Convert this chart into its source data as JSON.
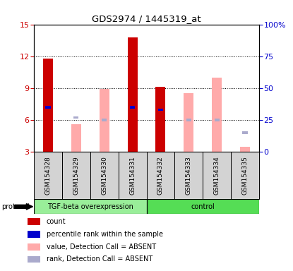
{
  "title": "GDS2974 / 1445319_at",
  "samples": [
    "GSM154328",
    "GSM154329",
    "GSM154330",
    "GSM154331",
    "GSM154332",
    "GSM154333",
    "GSM154334",
    "GSM154335"
  ],
  "left_ylim": [
    3,
    15
  ],
  "left_yticks": [
    3,
    6,
    9,
    12,
    15
  ],
  "right_ylim": [
    0,
    100
  ],
  "right_yticks": [
    0,
    25,
    50,
    75,
    100
  ],
  "right_yticklabels": [
    "0",
    "25",
    "50",
    "75",
    "100%"
  ],
  "left_axis_color": "#cc0000",
  "right_axis_color": "#0000cc",
  "count_bars": [
    11.8,
    null,
    null,
    13.8,
    9.1,
    null,
    null,
    null
  ],
  "absent_value_bars": [
    null,
    5.6,
    8.9,
    null,
    null,
    8.5,
    10.0,
    3.5
  ],
  "percentile_rank_pct": [
    35,
    null,
    null,
    35,
    33,
    null,
    null,
    null
  ],
  "absent_rank_pct": [
    null,
    27,
    25,
    null,
    null,
    25,
    25,
    15
  ],
  "count_color": "#cc0000",
  "absent_value_color": "#ffaaaa",
  "percentile_color": "#0000cc",
  "absent_rank_color": "#aaaacc",
  "tgf_color": "#99ee99",
  "ctrl_color": "#55dd55",
  "legend_items": [
    {
      "label": "count",
      "color": "#cc0000"
    },
    {
      "label": "percentile rank within the sample",
      "color": "#0000cc"
    },
    {
      "label": "value, Detection Call = ABSENT",
      "color": "#ffaaaa"
    },
    {
      "label": "rank, Detection Call = ABSENT",
      "color": "#aaaacc"
    }
  ],
  "fig_width": 4.15,
  "fig_height": 3.84,
  "dpi": 100
}
